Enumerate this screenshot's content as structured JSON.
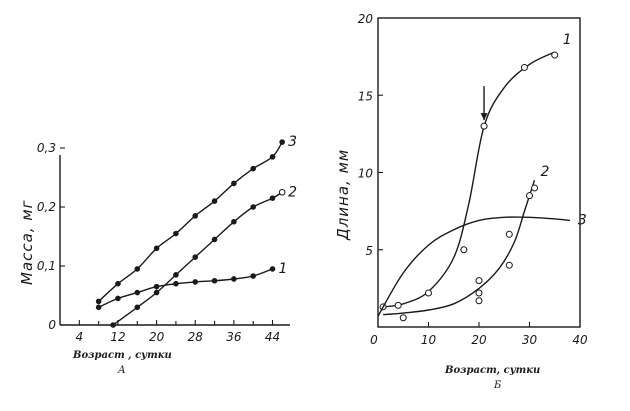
{
  "chart_data": [
    {
      "type": "line",
      "panel_label": "А",
      "xlabel": "Возраст , сутки",
      "ylabel": "Масса, мг",
      "xlim": [
        0,
        47
      ],
      "ylim": [
        0,
        0.3
      ],
      "x_ticks": [
        "4",
        "12",
        "20",
        "28",
        "36",
        "44"
      ],
      "x_tick_values": [
        4,
        12,
        20,
        28,
        36,
        44
      ],
      "y_ticks": [
        "0",
        "0,1",
        "0,2",
        "0,3"
      ],
      "y_tick_values": [
        0,
        0.1,
        0.2,
        0.3
      ],
      "extra_tick_values": [
        8,
        16,
        24,
        32,
        40
      ],
      "series": [
        {
          "name": "3",
          "marker": "filled",
          "points": [
            [
              8,
              0.04
            ],
            [
              12,
              0.07
            ],
            [
              16,
              0.095
            ],
            [
              20,
              0.13
            ],
            [
              24,
              0.155
            ],
            [
              28,
              0.185
            ],
            [
              32,
              0.21
            ],
            [
              36,
              0.24
            ],
            [
              40,
              0.265
            ],
            [
              44,
              0.285
            ],
            [
              46,
              0.31
            ]
          ]
        },
        {
          "name": "2",
          "marker": "filled",
          "points": [
            [
              11,
              0.0
            ],
            [
              16,
              0.03
            ],
            [
              20,
              0.055
            ],
            [
              24,
              0.085
            ],
            [
              28,
              0.115
            ],
            [
              32,
              0.145
            ],
            [
              36,
              0.175
            ],
            [
              40,
              0.2
            ],
            [
              44,
              0.215
            ],
            [
              46,
              0.225
            ]
          ]
        },
        {
          "name": "1",
          "marker": "filled",
          "points": [
            [
              8,
              0.03
            ],
            [
              12,
              0.045
            ],
            [
              16,
              0.055
            ],
            [
              20,
              0.065
            ],
            [
              24,
              0.07
            ],
            [
              28,
              0.073
            ],
            [
              32,
              0.075
            ],
            [
              36,
              0.078
            ],
            [
              40,
              0.083
            ],
            [
              44,
              0.095
            ]
          ]
        }
      ]
    },
    {
      "type": "line",
      "panel_label": "Б",
      "xlabel": "Возраст, сутки",
      "ylabel": "Длина, мм",
      "xlim": [
        0,
        40
      ],
      "ylim": [
        0,
        20
      ],
      "x_ticks": [
        "0",
        "10",
        "20",
        "30",
        "40"
      ],
      "x_tick_values": [
        0,
        10,
        20,
        30,
        40
      ],
      "y_ticks": [
        "0",
        "5",
        "10",
        "15",
        "20"
      ],
      "y_tick_values": [
        0,
        5,
        10,
        15,
        20
      ],
      "annotation": "arrow at x=21",
      "series": [
        {
          "name": "1",
          "curve": [
            [
              1,
              1.3
            ],
            [
              5,
              1.5
            ],
            [
              10,
              2.3
            ],
            [
              15,
              4.5
            ],
            [
              18,
              8
            ],
            [
              21,
              13
            ],
            [
              25,
              15.5
            ],
            [
              30,
              17
            ],
            [
              35,
              17.8
            ]
          ],
          "points": [
            [
              1,
              1.3
            ],
            [
              4,
              1.4
            ],
            [
              10,
              2.2
            ],
            [
              17,
              5
            ],
            [
              21,
              13
            ],
            [
              29,
              16.8
            ],
            [
              35,
              17.6
            ]
          ]
        },
        {
          "name": "2",
          "curve": [
            [
              1,
              0.8
            ],
            [
              5,
              0.9
            ],
            [
              10,
              1.1
            ],
            [
              15,
              1.5
            ],
            [
              20,
              2.5
            ],
            [
              24,
              3.8
            ],
            [
              27,
              5.5
            ],
            [
              29,
              7.5
            ],
            [
              31,
              9.5
            ]
          ],
          "points": [
            [
              5,
              0.6
            ],
            [
              20,
              1.7
            ],
            [
              20,
              2.2
            ],
            [
              20,
              3
            ],
            [
              26,
              4
            ],
            [
              26,
              6
            ],
            [
              30,
              8.5
            ],
            [
              31,
              9
            ]
          ]
        },
        {
          "name": "3",
          "curve": [
            [
              0,
              0.7
            ],
            [
              5,
              3.5
            ],
            [
              10,
              5.3
            ],
            [
              15,
              6.3
            ],
            [
              20,
              6.9
            ],
            [
              25,
              7.1
            ],
            [
              30,
              7.1
            ],
            [
              35,
              7
            ],
            [
              38,
              6.9
            ]
          ],
          "points": []
        }
      ]
    }
  ]
}
